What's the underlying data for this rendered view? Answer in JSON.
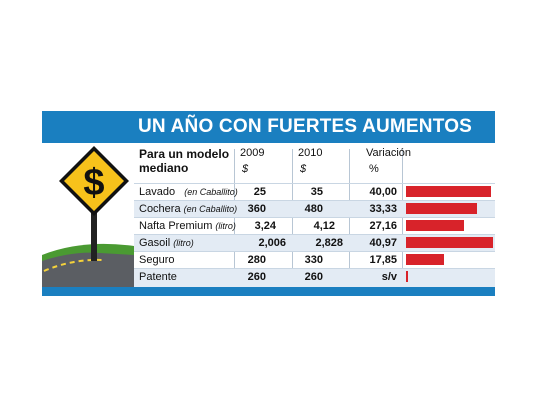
{
  "title": "UN AÑO CON FUERTES AUMENTOS",
  "sign_symbol": "$",
  "table": {
    "row_header": "Para un modelo mediano",
    "col_2009": "2009",
    "col_2010": "2010",
    "col_variacion": "Variación",
    "unit_2009": "$",
    "unit_2010": "$",
    "unit_variacion": "%"
  },
  "rows": [
    {
      "label": "Lavado",
      "sub": "(en Caballito)",
      "v2009": "25",
      "v2010": "35",
      "var": "40,00"
    },
    {
      "label": "Cochera",
      "sub": "(en Caballito)",
      "v2009": "360",
      "v2010": "480",
      "var": "33,33"
    },
    {
      "label": "Nafta Premium",
      "sub": "(litro)",
      "v2009": "3,24",
      "v2010": "4,12",
      "var": "27,16"
    },
    {
      "label": "Gasoil",
      "sub": "(litro)",
      "v2009": "2,006",
      "v2010": "2,828",
      "var": "40,97"
    },
    {
      "label": "Seguro",
      "sub": "",
      "v2009": "280",
      "v2010": "330",
      "var": "17,85"
    },
    {
      "label": "Patente",
      "sub": "",
      "v2009": "260",
      "v2010": "260",
      "var": "s/v"
    }
  ],
  "chart_data": {
    "type": "bar",
    "orientation": "horizontal",
    "categories": [
      "Lavado",
      "Cochera",
      "Nafta Premium",
      "Gasoil",
      "Seguro",
      "Patente"
    ],
    "values": [
      40.0,
      33.33,
      27.16,
      40.97,
      17.85,
      0
    ],
    "xlim": [
      0,
      42
    ],
    "grid": false,
    "legend": "none"
  },
  "colors": {
    "title_band": "#1a7fc0",
    "bar": "#d8232a",
    "row_shade": "#e3ebf4",
    "sign": "#f7c21b",
    "grass": "#4a9a32",
    "road": "#5b5e63"
  }
}
